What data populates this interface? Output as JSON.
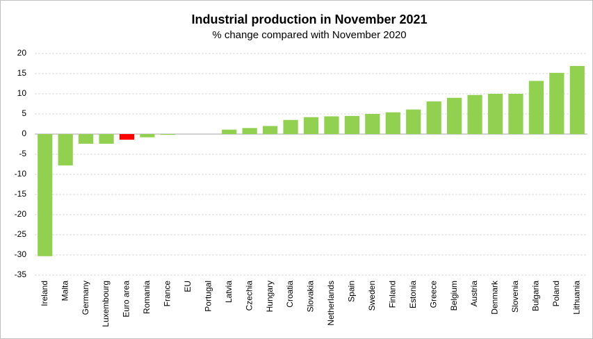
{
  "chart_data": {
    "type": "bar",
    "title": "Industrial production in November 2021",
    "subtitle": "% change compared with November 2020",
    "categories": [
      "Ireland",
      "Malta",
      "Germany",
      "Luxembourg",
      "Euro area",
      "Romania",
      "France",
      "EU",
      "Portugal",
      "Latvia",
      "Czechia",
      "Hungary",
      "Croatia",
      "Slovakia",
      "Netherlands",
      "Spain",
      "Sweden",
      "Finland",
      "Estonia",
      "Greece",
      "Belgium",
      "Austria",
      "Denmark",
      "Slovenia",
      "Bulgaria",
      "Poland",
      "Lithuania"
    ],
    "values": [
      -30.3,
      -7.8,
      -2.4,
      -2.4,
      -1.4,
      -0.8,
      -0.2,
      null,
      null,
      1.1,
      1.5,
      2.0,
      3.5,
      4.2,
      4.4,
      4.5,
      5.0,
      5.4,
      6.1,
      8.1,
      9.0,
      9.7,
      10.0,
      10.0,
      13.2,
      15.2,
      16.9
    ],
    "colors": [
      "#92d050",
      "#92d050",
      "#92d050",
      "#92d050",
      "#ff0000",
      "#92d050",
      "#92d050",
      "#92d050",
      "#92d050",
      "#92d050",
      "#92d050",
      "#92d050",
      "#92d050",
      "#92d050",
      "#92d050",
      "#92d050",
      "#92d050",
      "#92d050",
      "#92d050",
      "#92d050",
      "#92d050",
      "#92d050",
      "#92d050",
      "#92d050",
      "#92d050",
      "#92d050",
      "#92d050"
    ],
    "ylim": [
      -35,
      20
    ],
    "yticks": [
      -35,
      -30,
      -25,
      -20,
      -15,
      -10,
      -5,
      0,
      5,
      10,
      15,
      20
    ],
    "grid": true
  }
}
